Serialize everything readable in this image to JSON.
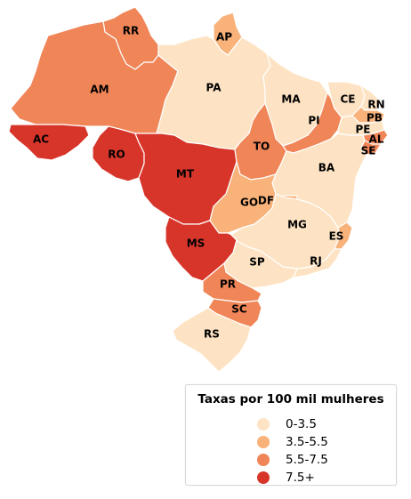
{
  "colors": {
    "0-3.5": "#fde3c3",
    "3.5-5.5": "#f8b27a",
    "5.5-7.5": "#f08557",
    "7.5+": "#d7352a"
  },
  "states": [
    {
      "abbr": "RR",
      "class": "5.5-7.5"
    },
    {
      "abbr": "AP",
      "class": "3.5-5.5"
    },
    {
      "abbr": "AM",
      "class": "5.5-7.5"
    },
    {
      "abbr": "PA",
      "class": "0-3.5"
    },
    {
      "abbr": "MA",
      "class": "0-3.5"
    },
    {
      "abbr": "CE",
      "class": "0-3.5"
    },
    {
      "abbr": "RN",
      "class": "0-3.5"
    },
    {
      "abbr": "PB",
      "class": "3.5-5.5"
    },
    {
      "abbr": "PI",
      "class": "5.5-7.5"
    },
    {
      "abbr": "PE",
      "class": "0-3.5"
    },
    {
      "abbr": "AL",
      "class": "5.5-7.5"
    },
    {
      "abbr": "SE",
      "class": "5.5-7.5"
    },
    {
      "abbr": "AC",
      "class": "7.5+"
    },
    {
      "abbr": "RO",
      "class": "7.5+"
    },
    {
      "abbr": "MT",
      "class": "7.5+"
    },
    {
      "abbr": "TO",
      "class": "5.5-7.5"
    },
    {
      "abbr": "BA",
      "class": "0-3.5"
    },
    {
      "abbr": "GO",
      "class": "3.5-5.5"
    },
    {
      "abbr": "DF",
      "class": "3.5-5.5"
    },
    {
      "abbr": "MG",
      "class": "0-3.5"
    },
    {
      "abbr": "ES",
      "class": "3.5-5.5"
    },
    {
      "abbr": "MS",
      "class": "7.5+"
    },
    {
      "abbr": "SP",
      "class": "0-3.5"
    },
    {
      "abbr": "RJ",
      "class": "0-3.5"
    },
    {
      "abbr": "PR",
      "class": "5.5-7.5"
    },
    {
      "abbr": "SC",
      "class": "5.5-7.5"
    },
    {
      "abbr": "RS",
      "class": "0-3.5"
    }
  ],
  "legend": {
    "title": "Taxas por 100 mil mulheres",
    "items": [
      {
        "label": "0-3.5",
        "color": "#fde3c3"
      },
      {
        "label": "3.5-5.5",
        "color": "#f8b27a"
      },
      {
        "label": "5.5-7.5",
        "color": "#f08557"
      },
      {
        "label": "7.5+",
        "color": "#d7352a"
      }
    ]
  }
}
